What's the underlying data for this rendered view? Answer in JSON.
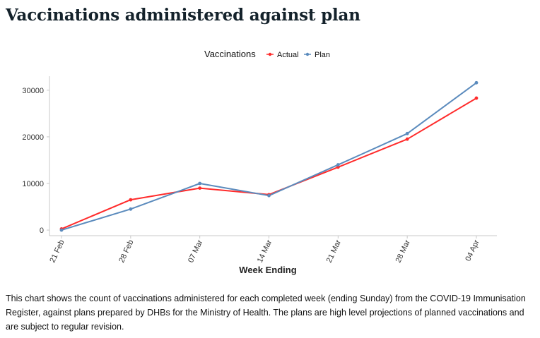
{
  "page": {
    "title": "Vaccinations administered against plan",
    "caption": "This chart shows the count of vaccinations administered for each completed week (ending Sunday) from the COVID-19 Immunisation Register, against plans prepared by DHBs for the Ministry of Health. The plans are high level projections of planned vaccinations and are subject to regular revision."
  },
  "chart_data": {
    "type": "line",
    "categories": [
      "21 Feb",
      "28 Feb",
      "07 Mar",
      "14 Mar",
      "21 Mar",
      "28 Mar",
      "04 Apr"
    ],
    "series": [
      {
        "name": "Actual",
        "color": "#ff2b2b",
        "values": [
          250,
          6500,
          9000,
          7600,
          13500,
          19500,
          28300
        ]
      },
      {
        "name": "Plan",
        "color": "#5b8bbd",
        "values": [
          0,
          4500,
          10000,
          7400,
          14000,
          20700,
          31600
        ]
      }
    ],
    "title": "",
    "xlabel": "Week Ending",
    "ylabel": "",
    "ylim": [
      -1200,
      33000
    ],
    "yticks": [
      0,
      10000,
      20000,
      30000
    ],
    "grid": false,
    "legend": {
      "title": "Vaccinations",
      "position": "top"
    }
  }
}
